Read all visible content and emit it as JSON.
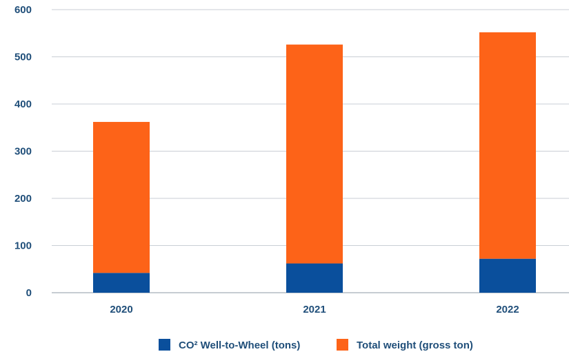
{
  "chart_data": {
    "type": "bar",
    "stacked": true,
    "title": "",
    "xlabel": "",
    "ylabel": "",
    "categories": [
      "2020",
      "2021",
      "2022"
    ],
    "ylim": [
      0,
      600
    ],
    "yticks": [
      0,
      100,
      200,
      300,
      400,
      500,
      600
    ],
    "grid": true,
    "legend_position": "bottom-center",
    "series": [
      {
        "name": "CO² Well-to-Wheel (tons)",
        "color": "#0a4f9c",
        "values": [
          42,
          62,
          72
        ]
      },
      {
        "name": "Total weight (gross ton)",
        "color": "#fd6318",
        "values": [
          320,
          464,
          480
        ]
      }
    ]
  }
}
